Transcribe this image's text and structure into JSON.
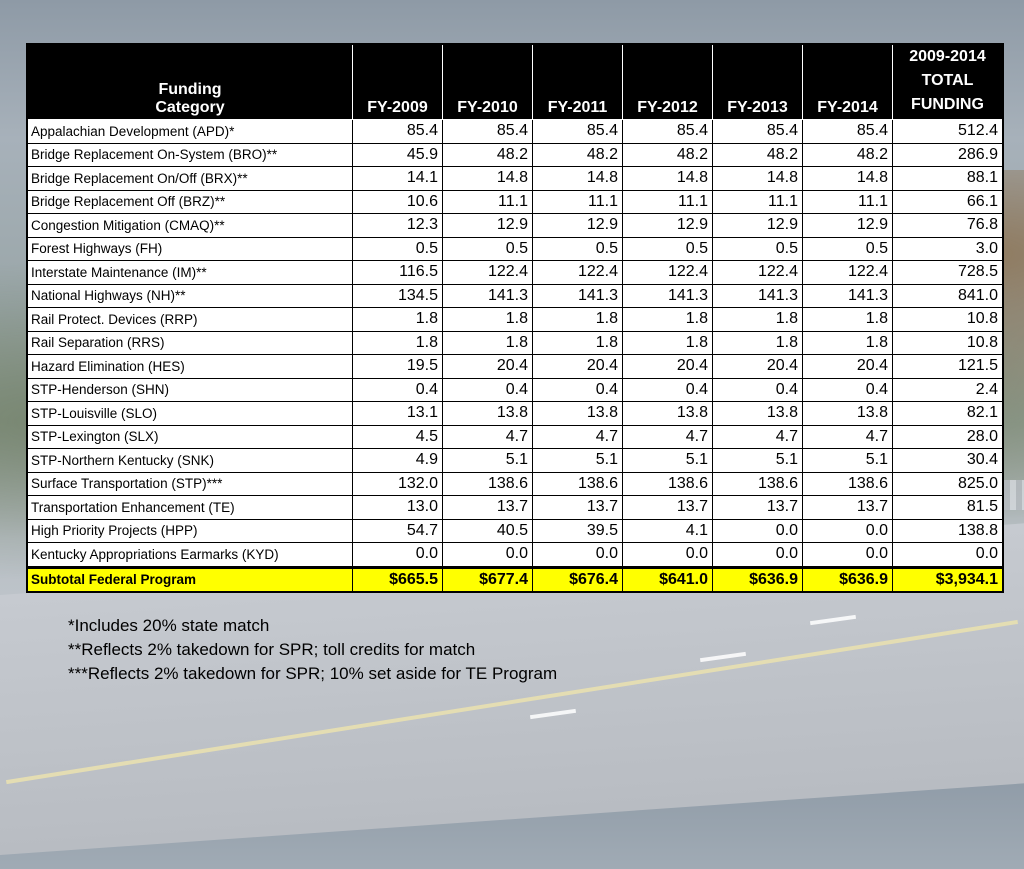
{
  "table": {
    "headers": {
      "category": [
        "Funding",
        "Category"
      ],
      "years": [
        "FY-2009",
        "FY-2010",
        "FY-2011",
        "FY-2012",
        "FY-2013",
        "FY-2014"
      ],
      "total": [
        "2009-2014",
        "TOTAL",
        "FUNDING"
      ]
    },
    "rows": [
      {
        "category": "Appalachian Development (APD)*",
        "values": [
          "85.4",
          "85.4",
          "85.4",
          "85.4",
          "85.4",
          "85.4"
        ],
        "total": "512.4"
      },
      {
        "category": "Bridge Replacement On-System (BRO)**",
        "values": [
          "45.9",
          "48.2",
          "48.2",
          "48.2",
          "48.2",
          "48.2"
        ],
        "total": "286.9"
      },
      {
        "category": "Bridge Replacement On/Off (BRX)**",
        "values": [
          "14.1",
          "14.8",
          "14.8",
          "14.8",
          "14.8",
          "14.8"
        ],
        "total": "88.1"
      },
      {
        "category": "Bridge Replacement Off (BRZ)**",
        "values": [
          "10.6",
          "11.1",
          "11.1",
          "11.1",
          "11.1",
          "11.1"
        ],
        "total": "66.1"
      },
      {
        "category": "Congestion Mitigation (CMAQ)**",
        "values": [
          "12.3",
          "12.9",
          "12.9",
          "12.9",
          "12.9",
          "12.9"
        ],
        "total": "76.8"
      },
      {
        "category": "Forest Highways (FH)",
        "values": [
          "0.5",
          "0.5",
          "0.5",
          "0.5",
          "0.5",
          "0.5"
        ],
        "total": "3.0"
      },
      {
        "category": "Interstate Maintenance (IM)**",
        "values": [
          "116.5",
          "122.4",
          "122.4",
          "122.4",
          "122.4",
          "122.4"
        ],
        "total": "728.5"
      },
      {
        "category": "National Highways (NH)**",
        "values": [
          "134.5",
          "141.3",
          "141.3",
          "141.3",
          "141.3",
          "141.3"
        ],
        "total": "841.0"
      },
      {
        "category": "Rail Protect. Devices (RRP)",
        "values": [
          "1.8",
          "1.8",
          "1.8",
          "1.8",
          "1.8",
          "1.8"
        ],
        "total": "10.8"
      },
      {
        "category": "Rail Separation (RRS)",
        "values": [
          "1.8",
          "1.8",
          "1.8",
          "1.8",
          "1.8",
          "1.8"
        ],
        "total": "10.8"
      },
      {
        "category": "Hazard Elimination (HES)",
        "values": [
          "19.5",
          "20.4",
          "20.4",
          "20.4",
          "20.4",
          "20.4"
        ],
        "total": "121.5"
      },
      {
        "category": "STP-Henderson (SHN)",
        "values": [
          "0.4",
          "0.4",
          "0.4",
          "0.4",
          "0.4",
          "0.4"
        ],
        "total": "2.4"
      },
      {
        "category": "STP-Louisville (SLO)",
        "values": [
          "13.1",
          "13.8",
          "13.8",
          "13.8",
          "13.8",
          "13.8"
        ],
        "total": "82.1"
      },
      {
        "category": "STP-Lexington (SLX)",
        "values": [
          "4.5",
          "4.7",
          "4.7",
          "4.7",
          "4.7",
          "4.7"
        ],
        "total": "28.0"
      },
      {
        "category": "STP-Northern Kentucky (SNK)",
        "values": [
          "4.9",
          "5.1",
          "5.1",
          "5.1",
          "5.1",
          "5.1"
        ],
        "total": "30.4"
      },
      {
        "category": "Surface Transportation (STP)***",
        "values": [
          "132.0",
          "138.6",
          "138.6",
          "138.6",
          "138.6",
          "138.6"
        ],
        "total": "825.0"
      },
      {
        "category": "Transportation Enhancement (TE)",
        "values": [
          "13.0",
          "13.7",
          "13.7",
          "13.7",
          "13.7",
          "13.7"
        ],
        "total": "81.5"
      },
      {
        "category": "High Priority Projects (HPP)",
        "values": [
          "54.7",
          "40.5",
          "39.5",
          "4.1",
          "0.0",
          "0.0"
        ],
        "total": "138.8"
      },
      {
        "category": "Kentucky Appropriations Earmarks (KYD)",
        "values": [
          "0.0",
          "0.0",
          "0.0",
          "0.0",
          "0.0",
          "0.0"
        ],
        "total": "0.0"
      }
    ],
    "subtotal": {
      "category": "Subtotal Federal Program",
      "values": [
        "$665.5",
        "$677.4",
        "$676.4",
        "$641.0",
        "$636.9",
        "$636.9"
      ],
      "total": "$3,934.1"
    }
  },
  "notes": [
    "*Includes 20% state match",
    "**Reflects 2% takedown for SPR; toll credits for match",
    "***Reflects 2% takedown for SPR; 10% set aside for TE Program"
  ],
  "colors": {
    "header_bg": "#000000",
    "subtotal_highlight": "#ffff00"
  }
}
